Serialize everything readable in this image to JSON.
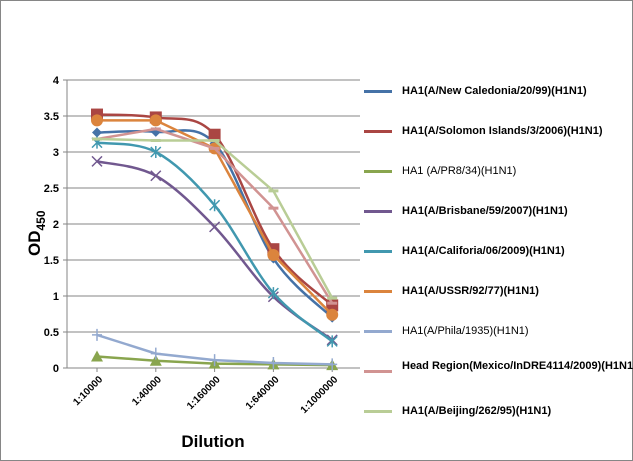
{
  "chart_data": {
    "type": "line",
    "title": "",
    "xlabel": "Dilution",
    "ylabel": "OD",
    "ylabel_sub": "450",
    "categories": [
      "1:10000",
      "1:40000",
      "1:160000",
      "1:640000",
      "1:1000000"
    ],
    "ylim": [
      0,
      4
    ],
    "yticks": [
      "0",
      "0.5",
      "1",
      "1.5",
      "2",
      "2.5",
      "3",
      "3.5",
      "4"
    ],
    "grid": true,
    "legend": "right",
    "series": [
      {
        "name": "HA1(A/New Caledonia/20/99)(H1N1)",
        "color": "#4572a7",
        "marker": "diamond",
        "bold": true,
        "smooth": true,
        "values": [
          3.27,
          3.28,
          3.12,
          1.52,
          0.7
        ]
      },
      {
        "name": "HA1(A/Solomon Islands/3/2006)(H1N1)",
        "color": "#aa4643",
        "marker": "square",
        "bold": true,
        "smooth": true,
        "values": [
          3.52,
          3.48,
          3.24,
          1.65,
          0.87
        ]
      },
      {
        "name": "HA1 (A/PR8/34)(H1N1)",
        "color": "#89a54e",
        "marker": "triangle",
        "bold": false,
        "smooth": false,
        "values": [
          0.16,
          0.1,
          0.06,
          0.05,
          0.04
        ]
      },
      {
        "name": "HA1(A/Brisbane/59/2007)(H1N1)",
        "color": "#71588f",
        "marker": "x",
        "bold": true,
        "smooth": true,
        "values": [
          2.87,
          2.67,
          1.96,
          0.99,
          0.39
        ]
      },
      {
        "name": "HA1(A/Califoria/06/2009)(H1N1)",
        "color": "#4198af",
        "marker": "star",
        "bold": true,
        "smooth": true,
        "values": [
          3.13,
          3.0,
          2.26,
          1.04,
          0.37
        ]
      },
      {
        "name": "HA1(A/USSR/92/77)(H1N1)",
        "color": "#db843d",
        "marker": "circle",
        "bold": true,
        "smooth": false,
        "values": [
          3.44,
          3.44,
          3.05,
          1.57,
          0.74
        ]
      },
      {
        "name": "HA1(A/Phila/1935)(H1N1)",
        "color": "#93a9cf",
        "marker": "plus",
        "bold": false,
        "smooth": false,
        "values": [
          0.46,
          0.2,
          0.11,
          0.07,
          0.05
        ]
      },
      {
        "name": "Head Region(Mexico/InDRE4114/2009)(H1N1)",
        "color": "#d19392",
        "marker": "dash",
        "bold": true,
        "smooth": false,
        "values": [
          3.18,
          3.32,
          3.05,
          2.22,
          0.9
        ]
      },
      {
        "name": "HA1(A/Beijing/262/95)(H1N1)",
        "color": "#b9cd96",
        "marker": "dash",
        "bold": true,
        "smooth": false,
        "values": [
          3.18,
          3.16,
          3.16,
          2.46,
          0.97
        ]
      }
    ]
  }
}
